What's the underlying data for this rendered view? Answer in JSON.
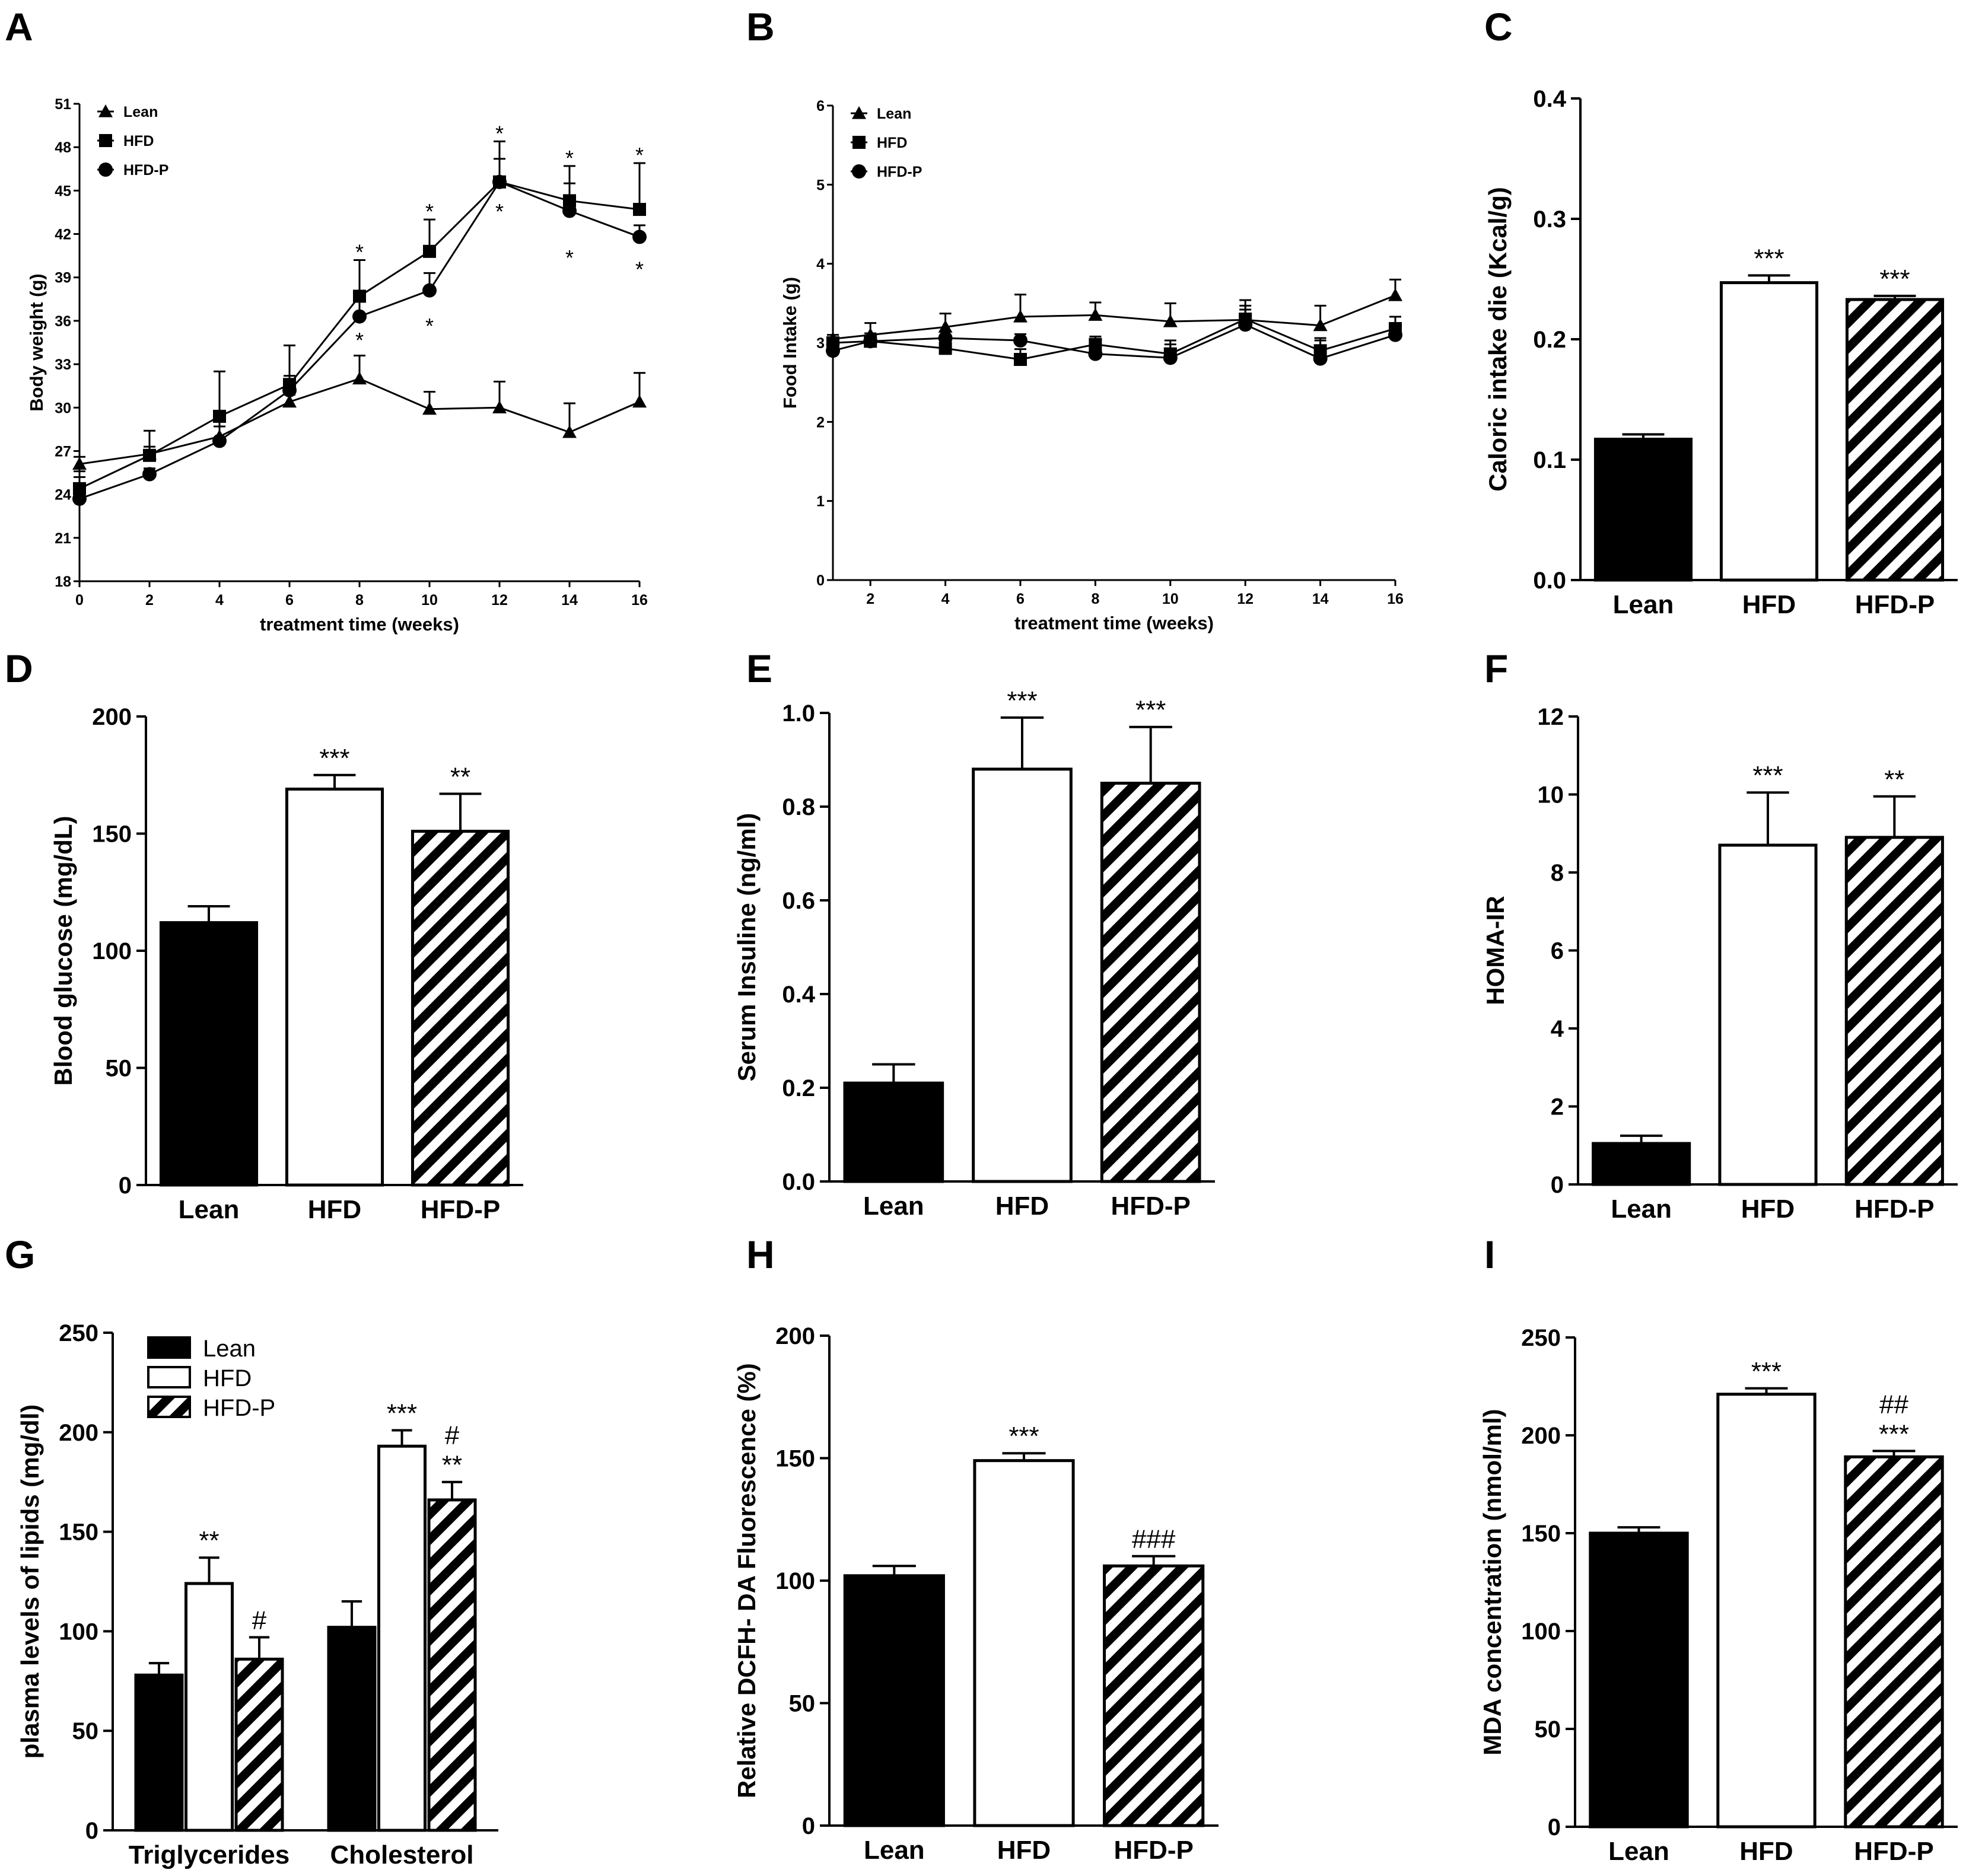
{
  "panel_labels": [
    "A",
    "B",
    "C",
    "D",
    "E",
    "F",
    "G",
    "H",
    "I"
  ],
  "group_names": [
    "Lean",
    "HFD",
    "HFD-P"
  ],
  "colors": {
    "lean": "#000000",
    "hfd": "#ffffff",
    "hfdp_hatch": "#000000",
    "axis": "#000000"
  },
  "chart_data": [
    {
      "id": "A",
      "type": "line",
      "xlabel": "treatment time (weeks)",
      "ylabel": "Body weight (g)",
      "x": [
        0,
        2,
        4,
        6,
        8,
        10,
        12,
        14,
        16
      ],
      "xticks": [
        "0",
        "2",
        "4",
        "6",
        "8",
        "10",
        "12",
        "14",
        "16"
      ],
      "xlim": [
        0,
        16
      ],
      "yticks": [
        "18",
        "21",
        "24",
        "27",
        "30",
        "33",
        "36",
        "39",
        "42",
        "45",
        "48",
        "51"
      ],
      "ylim": [
        18,
        51
      ],
      "legend": [
        "Lean",
        "HFD",
        "HFD-P"
      ],
      "series": [
        {
          "name": "Lean",
          "marker": "triangle",
          "values": [
            26.1,
            26.8,
            28.0,
            30.4,
            32.0,
            29.9,
            30.0,
            28.3,
            30.4
          ],
          "err": [
            0.5,
            0.5,
            0.7,
            0.5,
            1.6,
            1.2,
            1.8,
            2.0,
            2.0
          ]
        },
        {
          "name": "HFD",
          "marker": "square",
          "values": [
            24.4,
            26.7,
            29.4,
            31.6,
            37.7,
            40.8,
            45.6,
            44.3,
            43.7
          ],
          "err": [
            1.2,
            1.7,
            3.1,
            2.7,
            2.5,
            2.2,
            2.8,
            2.4,
            3.2
          ]
        },
        {
          "name": "HFD-P",
          "marker": "circle",
          "values": [
            23.7,
            25.4,
            27.7,
            31.2,
            36.3,
            38.1,
            45.6,
            43.6,
            41.8
          ],
          "err": [
            1.5,
            0.4,
            1.8,
            1.0,
            1.3,
            1.2,
            1.6,
            1.9,
            0.8
          ]
        }
      ],
      "annotations": [
        {
          "x": 8,
          "y": 40.9,
          "text": "*"
        },
        {
          "x": 8,
          "y": 34.8,
          "text": "*"
        },
        {
          "x": 10,
          "y": 43.7,
          "text": "*"
        },
        {
          "x": 10,
          "y": 35.8,
          "text": "*"
        },
        {
          "x": 12,
          "y": 49.1,
          "text": "*"
        },
        {
          "x": 12,
          "y": 43.7,
          "text": "*"
        },
        {
          "x": 14,
          "y": 47.4,
          "text": "*"
        },
        {
          "x": 14,
          "y": 40.5,
          "text": "*"
        },
        {
          "x": 16,
          "y": 47.6,
          "text": "*"
        },
        {
          "x": 16,
          "y": 39.7,
          "text": "*"
        }
      ]
    },
    {
      "id": "B",
      "type": "line",
      "xlabel": "treatment time (weeks)",
      "ylabel": "Food Intake (g)",
      "x": [
        1,
        2,
        4,
        6,
        8,
        10,
        12,
        14,
        16
      ],
      "xticks": [
        "2",
        "4",
        "6",
        "8",
        "10",
        "12",
        "14",
        "16"
      ],
      "xtick_values": [
        2,
        4,
        6,
        8,
        10,
        12,
        14,
        16
      ],
      "xlim": [
        1,
        16
      ],
      "yticks": [
        "0",
        "1",
        "2",
        "3",
        "4",
        "5",
        "6"
      ],
      "ylim": [
        0,
        6
      ],
      "legend": [
        "Lean",
        "HFD",
        "HFD-P"
      ],
      "series": [
        {
          "name": "Lean",
          "marker": "triangle",
          "values": [
            3.05,
            3.1,
            3.2,
            3.33,
            3.35,
            3.27,
            3.29,
            3.22,
            3.6
          ],
          "err": [
            0.05,
            0.15,
            0.17,
            0.28,
            0.16,
            0.23,
            0.25,
            0.25,
            0.2
          ]
        },
        {
          "name": "HFD",
          "marker": "square",
          "values": [
            3.0,
            3.02,
            2.93,
            2.79,
            2.98,
            2.86,
            3.3,
            2.9,
            3.18
          ],
          "err": [
            0.05,
            0.1,
            0.07,
            0.13,
            0.1,
            0.12,
            0.12,
            0.13,
            0.15
          ]
        },
        {
          "name": "HFD-P",
          "marker": "circle",
          "values": [
            2.9,
            3.02,
            3.06,
            3.03,
            2.86,
            2.81,
            3.23,
            2.8,
            3.1
          ],
          "err": [
            0.05,
            0.1,
            0.09,
            0.08,
            0.09,
            0.22,
            0.24,
            0.26,
            0.15
          ]
        }
      ]
    },
    {
      "id": "C",
      "type": "bar",
      "ylabel": "Caloric intake die (Kcal/g)",
      "categories": [
        "Lean",
        "HFD",
        "HFD-P"
      ],
      "values": [
        0.117,
        0.247,
        0.233
      ],
      "err": [
        0.004,
        0.006,
        0.003
      ],
      "ylim": [
        0,
        0.4
      ],
      "yticks": [
        "0.0",
        "0.1",
        "0.2",
        "0.3",
        "0.4"
      ],
      "sig": [
        [],
        [
          "***"
        ],
        [
          "***"
        ]
      ]
    },
    {
      "id": "D",
      "type": "bar",
      "ylabel": "Blood glucose (mg/dL)",
      "categories": [
        "Lean",
        "HFD",
        "HFD-P"
      ],
      "values": [
        112,
        169,
        151
      ],
      "err": [
        7,
        6,
        16
      ],
      "ylim": [
        0,
        200
      ],
      "yticks": [
        "0",
        "50",
        "100",
        "150",
        "200"
      ],
      "sig": [
        [],
        [
          "***"
        ],
        [
          "**"
        ]
      ]
    },
    {
      "id": "E",
      "type": "bar",
      "ylabel": "Serum Insuline (ng/ml)",
      "categories": [
        "Lean",
        "HFD",
        "HFD-P"
      ],
      "values": [
        0.21,
        0.88,
        0.85
      ],
      "err": [
        0.04,
        0.11,
        0.12
      ],
      "ylim": [
        0,
        1.0
      ],
      "yticks": [
        "0.0",
        "0.2",
        "0.4",
        "0.6",
        "0.8",
        "1.0"
      ],
      "sig": [
        [],
        [
          "***"
        ],
        [
          "***"
        ]
      ]
    },
    {
      "id": "F",
      "type": "bar",
      "ylabel": "HOMA-IR",
      "categories": [
        "Lean",
        "HFD",
        "HFD-P"
      ],
      "values": [
        1.05,
        8.7,
        8.9
      ],
      "err": [
        0.2,
        1.35,
        1.05
      ],
      "ylim": [
        0,
        12
      ],
      "yticks": [
        "0",
        "2",
        "4",
        "6",
        "8",
        "10",
        "12"
      ],
      "sig": [
        [],
        [
          "***"
        ],
        [
          "**"
        ]
      ]
    },
    {
      "id": "G",
      "type": "bar",
      "ylabel": "plasma levels of lipids (mg/dl)",
      "categories": [
        "Triglycerides",
        "Cholesterol"
      ],
      "series": [
        {
          "name": "Lean",
          "values": [
            78,
            102
          ],
          "err": [
            6,
            13
          ]
        },
        {
          "name": "HFD",
          "values": [
            124,
            193
          ],
          "err": [
            13,
            8
          ]
        },
        {
          "name": "HFD-P",
          "values": [
            86,
            166
          ],
          "err": [
            11,
            9
          ]
        }
      ],
      "ylim": [
        0,
        250
      ],
      "yticks": [
        "0",
        "50",
        "100",
        "150",
        "200",
        "250"
      ],
      "legend": [
        "Lean",
        "HFD",
        "HFD-P"
      ],
      "sig": [
        [
          [],
          [
            "**"
          ],
          [
            "#"
          ]
        ],
        [
          [],
          [
            "***"
          ],
          [
            "**",
            "#"
          ]
        ]
      ]
    },
    {
      "id": "H",
      "type": "bar",
      "ylabel": "Relative DCFH- DA Fluorescence (%)",
      "categories": [
        "Lean",
        "HFD",
        "HFD-P"
      ],
      "values": [
        102,
        149,
        106
      ],
      "err": [
        4,
        3,
        4
      ],
      "ylim": [
        0,
        200
      ],
      "yticks": [
        "0",
        "50",
        "100",
        "150",
        "200"
      ],
      "sig": [
        [],
        [
          "***"
        ],
        [
          "###"
        ]
      ]
    },
    {
      "id": "I",
      "type": "bar",
      "ylabel": "MDA concentration (nmol/ml)",
      "categories": [
        "Lean",
        "HFD",
        "HFD-P"
      ],
      "values": [
        150,
        221,
        189
      ],
      "err": [
        3,
        3,
        3
      ],
      "ylim": [
        0,
        250
      ],
      "yticks": [
        "0",
        "50",
        "100",
        "150",
        "200",
        "250"
      ],
      "sig": [
        [],
        [
          "***"
        ],
        [
          "***",
          "##"
        ]
      ]
    }
  ]
}
